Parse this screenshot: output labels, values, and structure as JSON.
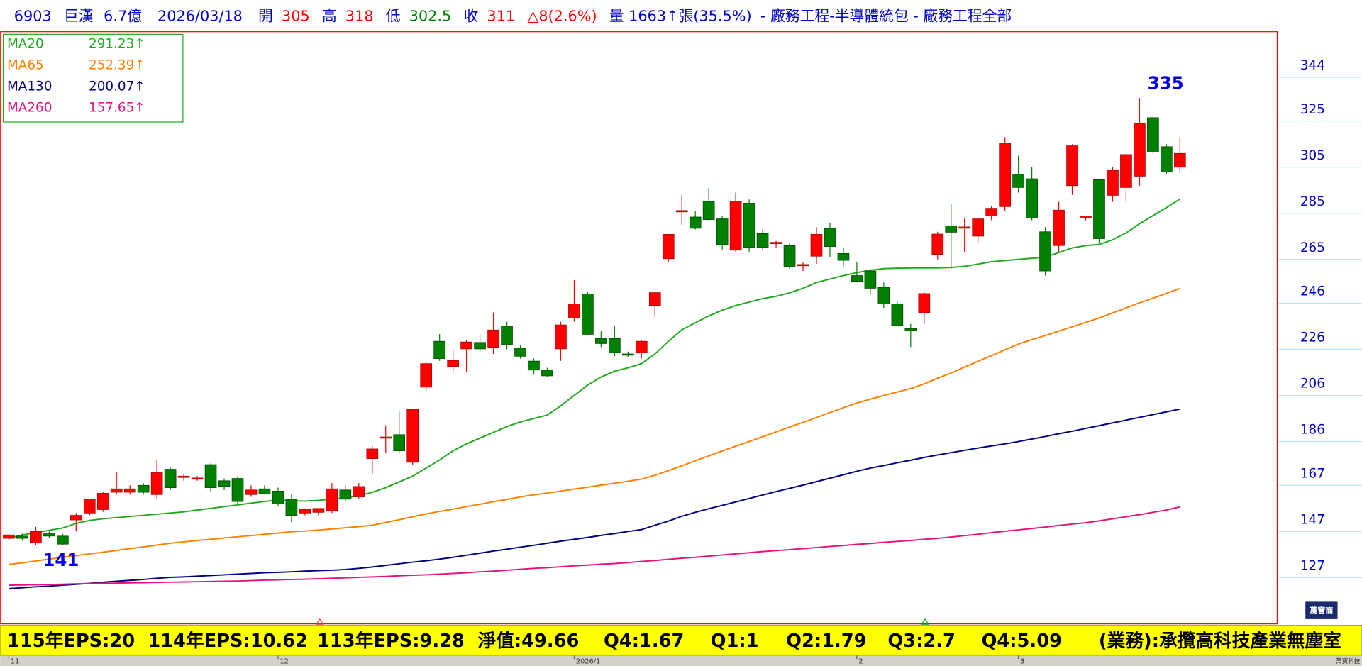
{
  "header": {
    "parts": [
      {
        "text": "6903",
        "color": "#0000cc"
      },
      {
        "text": "巨漢",
        "color": "#0000cc"
      },
      {
        "text": "6.7億",
        "color": "#0000cc"
      },
      {
        "text": "2026/03/18",
        "color": "#0000cc"
      },
      {
        "text": "開",
        "color": "#0000cc"
      },
      {
        "text": "305",
        "color": "#ff0000"
      },
      {
        "text": "高",
        "color": "#0000cc"
      },
      {
        "text": "318",
        "color": "#ff0000"
      },
      {
        "text": "低",
        "color": "#0000cc"
      },
      {
        "text": "302.5",
        "color": "#008000"
      },
      {
        "text": "收",
        "color": "#0000cc"
      },
      {
        "text": "311",
        "color": "#ff0000"
      },
      {
        "text": "△8(2.6%)",
        "color": "#ff0000"
      },
      {
        "text": "量 1663↑張(35.5%)",
        "color": "#0000cc"
      },
      {
        "text": "- 廠務工程-半導體統包 - 廠務工程全部",
        "color": "#0000cc"
      }
    ]
  },
  "chart_data": {
    "type": "candlestick",
    "categories": [
      "11",
      null,
      null,
      null,
      null,
      null,
      null,
      null,
      null,
      null,
      null,
      null,
      null,
      null,
      null,
      null,
      null,
      null,
      null,
      null,
      "12",
      null,
      null,
      null,
      null,
      null,
      null,
      null,
      null,
      null,
      null,
      null,
      null,
      null,
      null,
      null,
      null,
      null,
      null,
      null,
      null,
      null,
      "2026/1",
      null,
      null,
      null,
      null,
      null,
      null,
      null,
      null,
      null,
      null,
      null,
      null,
      null,
      null,
      null,
      null,
      null,
      null,
      null,
      null,
      "2",
      null,
      null,
      null,
      null,
      null,
      null,
      null,
      null,
      null,
      null,
      null,
      "3",
      null,
      null,
      null,
      null,
      null,
      null,
      null,
      null,
      null,
      null,
      null,
      null
    ],
    "ohlc": {
      "open": [
        144,
        145,
        142,
        146,
        145,
        152,
        155,
        156.5,
        164,
        164,
        167,
        163,
        174,
        170.5,
        170,
        176,
        169,
        170,
        163,
        165.5,
        164.5,
        161,
        155,
        155.3,
        156,
        165,
        162,
        178.6,
        187.5,
        189,
        177,
        209.6,
        229.5,
        218.5,
        226.2,
        229,
        226.9,
        236,
        226.5,
        220.9,
        217,
        226.2,
        239.7,
        250,
        230.7,
        230.7,
        224,
        224.6,
        245,
        265.3,
        285.6,
        283.4,
        290.2,
        282.6,
        269,
        289.4,
        276.2,
        272,
        271,
        262.4,
        266.4,
        278.5,
        267.6,
        258,
        260,
        252.9,
        245.7,
        235,
        241.9,
        267.2,
        279.6,
        278.5,
        275.1,
        283.8,
        287.9,
        301.9,
        300,
        277,
        271,
        297,
        283.4,
        299.6,
        292.8,
        296.2,
        301.1,
        326.5,
        313.9,
        305
      ],
      "high": [
        146,
        146,
        149,
        147,
        146,
        155,
        161,
        164,
        173,
        167,
        168,
        178,
        175,
        172,
        171,
        176.5,
        170,
        171,
        167,
        167,
        166,
        163,
        157,
        157,
        168,
        167,
        168,
        184,
        193,
        199,
        200,
        220.5,
        232.6,
        226,
        230,
        232,
        242,
        238,
        228,
        222,
        218,
        238,
        256,
        251,
        234,
        236,
        225,
        230,
        251,
        276,
        293,
        286,
        296,
        284,
        294,
        291,
        278,
        273,
        272,
        264,
        279,
        281,
        270,
        264,
        261,
        255,
        247,
        237,
        251,
        277,
        289,
        283,
        283,
        288,
        318,
        310,
        305,
        279,
        290,
        315,
        284,
        300,
        305,
        311,
        335,
        327,
        315,
        318
      ],
      "low": [
        143,
        143,
        141,
        144,
        141,
        147,
        154,
        155.5,
        163,
        163,
        163,
        161,
        165,
        169,
        169,
        164,
        165,
        159,
        162,
        163,
        158,
        151,
        154,
        154,
        155,
        160,
        161,
        172,
        181,
        181,
        176,
        208,
        221,
        216,
        216,
        225,
        224,
        226,
        222,
        215,
        214,
        221,
        238,
        232,
        227,
        223,
        222.5,
        222,
        240,
        264,
        280,
        278,
        282,
        269,
        268,
        268,
        269,
        270,
        261,
        260,
        263,
        266,
        262,
        255,
        250,
        244,
        236,
        227,
        237,
        265,
        261,
        268,
        272,
        282,
        286,
        294,
        282,
        258,
        268,
        293,
        282,
        272,
        290,
        290,
        297,
        311,
        302,
        302.5
      ],
      "close": [
        145.5,
        144,
        147,
        145,
        141.5,
        154,
        161,
        163.6,
        165.5,
        165.5,
        164,
        172.5,
        166,
        171,
        170.2,
        166,
        166.5,
        160,
        165,
        163.2,
        159,
        154,
        156.5,
        157,
        165.5,
        161,
        166.5,
        182.8,
        188,
        182,
        200,
        219.8,
        222,
        221.2,
        229.2,
        226.2,
        234.4,
        228,
        223,
        217,
        214.5,
        236.6,
        245.7,
        232.5,
        228.5,
        224.6,
        223.8,
        229.5,
        250.6,
        275.9,
        286.2,
        278.5,
        282.3,
        271.4,
        290.2,
        270.2,
        270.2,
        272.4,
        262,
        262.8,
        275.9,
        270.6,
        264.6,
        255.5,
        252.5,
        245.7,
        236.3,
        234.1,
        250.2,
        276,
        276.8,
        279.1,
        282.6,
        287.2,
        315.4,
        296.2,
        283,
        260,
        286.4,
        314.3,
        283.8,
        274,
        303.7,
        310.5,
        324,
        311.6,
        303,
        311
      ],
      "up_color": "#ff0000",
      "down_color": "#008000"
    },
    "series": [
      {
        "name": "MA20",
        "legend_value": "291.23↑",
        "color": "#1faa1f",
        "values": [
          144,
          145.5,
          146.5,
          147.5,
          148.5,
          150.5,
          151.8,
          152.5,
          153,
          153.5,
          154,
          154.5,
          155,
          155.5,
          156.3,
          157,
          157.8,
          158.5,
          159.3,
          160,
          160.7,
          160.3,
          160.2,
          160.5,
          161,
          161.5,
          162.5,
          164,
          166,
          168.5,
          171,
          174.5,
          178,
          182,
          185,
          187.5,
          190,
          192.5,
          194.5,
          196,
          197.5,
          201.5,
          206,
          210.5,
          214,
          216.5,
          218,
          219.8,
          224,
          229.5,
          234.5,
          237.5,
          240.5,
          243,
          245,
          246.5,
          248,
          249,
          250.5,
          252.5,
          255,
          256.5,
          258,
          259.3,
          260.3,
          261,
          261.2,
          261.3,
          261.3,
          261.3,
          261.5,
          262,
          263,
          264,
          264.5,
          265,
          265.5,
          266,
          268,
          270,
          271,
          271.5,
          273.5,
          276.5,
          280.5,
          284,
          287.5,
          291.23
        ]
      },
      {
        "name": "MA65",
        "legend_value": "252.39↑",
        "color": "#ff8000",
        "values": [
          132.7,
          133.4,
          134.2,
          135,
          135.8,
          136.5,
          137.3,
          138,
          138.8,
          139.6,
          140.3,
          141.1,
          141.9,
          142.5,
          143.1,
          143.6,
          144.2,
          144.7,
          145.2,
          145.8,
          146.3,
          146.9,
          147.2,
          147.6,
          148.1,
          148.6,
          149.1,
          149.7,
          150.9,
          152.1,
          153.4,
          154.6,
          155.7,
          156.7,
          157.8,
          158.8,
          159.9,
          160.9,
          162,
          162.9,
          163.7,
          164.5,
          165.4,
          166.2,
          167.1,
          167.9,
          168.8,
          169.7,
          171.4,
          173.4,
          175.5,
          177.7,
          179.8,
          181.9,
          184,
          186,
          188.1,
          190.2,
          192.3,
          194.3,
          196.4,
          198.6,
          200.7,
          202.7,
          204.4,
          206,
          207.5,
          209,
          211,
          213.5,
          215.7,
          218.3,
          220.8,
          223.3,
          225.8,
          228.3,
          230.2,
          232,
          233.9,
          235.8,
          237.7,
          239.6,
          241.8,
          244,
          246.2,
          248.2,
          250.3,
          252.39
        ]
      },
      {
        "name": "MA130",
        "legend_value": "200.07↑",
        "color": "#000080",
        "values": [
          122.2,
          122.6,
          123,
          123.3,
          123.7,
          124.1,
          124.5,
          125,
          125.4,
          125.8,
          126.2,
          126.7,
          127.1,
          127.3,
          127.6,
          127.9,
          128.2,
          128.5,
          128.8,
          129.1,
          129.3,
          129.5,
          129.8,
          130,
          130.2,
          130.5,
          131,
          131.6,
          132.3,
          133,
          133.7,
          134.3,
          135,
          135.8,
          136.7,
          137.6,
          138.5,
          139.3,
          140.2,
          141,
          141.9,
          142.8,
          143.6,
          144.4,
          145.3,
          146.1,
          147,
          147.8,
          149.7,
          151.5,
          153.6,
          155.3,
          156.9,
          158.3,
          159.8,
          161.3,
          162.8,
          164.3,
          165.7,
          167.1,
          168.6,
          170.1,
          171.6,
          173.1,
          174.5,
          175.6,
          176.8,
          177.9,
          179.1,
          180.2,
          181.2,
          182.2,
          183.2,
          184.1,
          185,
          186,
          187.1,
          188.2,
          189.4,
          190.5,
          191.7,
          192.9,
          194.1,
          195.3,
          196.5,
          197.7,
          198.9,
          200.07
        ]
      },
      {
        "name": "MA260",
        "legend_value": "157.65↑",
        "color": "#e8127c",
        "values": [
          123.7,
          123.8,
          123.9,
          124,
          124.1,
          124.3,
          124.4,
          124.5,
          124.6,
          124.7,
          124.8,
          124.9,
          125,
          125.1,
          125.2,
          125.3,
          125.4,
          125.5,
          125.7,
          125.9,
          126,
          126.2,
          126.3,
          126.5,
          126.7,
          126.9,
          127.1,
          127.3,
          127.5,
          127.8,
          128,
          128.2,
          128.5,
          128.8,
          129.1,
          129.5,
          129.8,
          130.2,
          130.6,
          131,
          131.3,
          131.7,
          132.1,
          132.4,
          132.8,
          133.1,
          133.5,
          134,
          134.4,
          134.9,
          135.4,
          135.8,
          136.3,
          136.8,
          137.3,
          137.8,
          138.3,
          138.7,
          139.1,
          139.6,
          140,
          140.5,
          140.9,
          141.4,
          141.8,
          142.3,
          142.7,
          143.1,
          143.6,
          144,
          144.6,
          145.2,
          145.8,
          146.5,
          147.1,
          147.7,
          148.3,
          148.9,
          149.6,
          150.2,
          150.8,
          151.6,
          152.5,
          153.4,
          154.3,
          155.3,
          156.3,
          157.65
        ]
      }
    ],
    "ylim": [
      107.1,
      363.6
    ],
    "yticks": [
      344,
      325,
      305,
      285,
      265,
      246,
      226,
      206,
      186,
      167,
      147,
      127
    ],
    "max_label": "335",
    "min_label": "141"
  },
  "footer": {
    "items": [
      "115年EPS:20",
      "114年EPS:10.62",
      "113年EPS:9.28",
      "淨值:49.66",
      "Q4:1.67",
      "Q1:1",
      "Q2:1.79",
      "Q3:2.7",
      "Q4:5.09",
      "(業務):承攬高科技產業無塵室"
    ]
  },
  "brand": {
    "logo": "萬寶商",
    "name": "萬寶科技"
  }
}
